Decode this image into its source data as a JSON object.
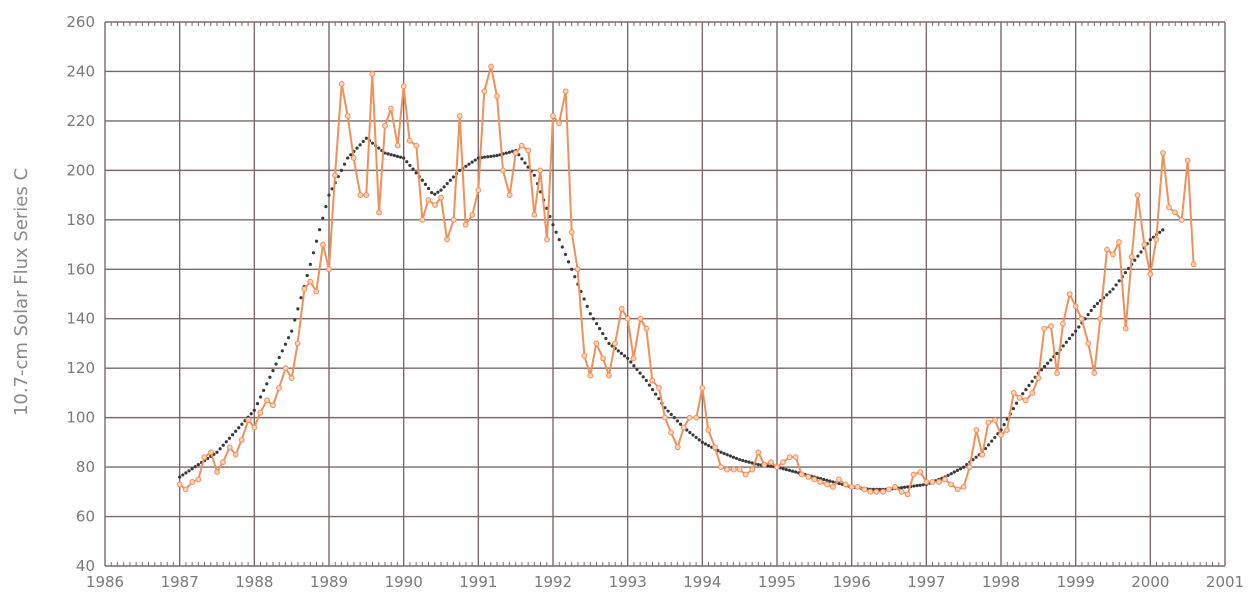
{
  "chart_data": {
    "type": "line",
    "title": "",
    "xlabel": "",
    "ylabel": "10.7-cm Solar Flux Series C",
    "xlim": [
      1986,
      2001
    ],
    "ylim": [
      40,
      260
    ],
    "xticks": [
      1986,
      1987,
      1988,
      1989,
      1990,
      1991,
      1992,
      1993,
      1994,
      1995,
      1996,
      1997,
      1998,
      1999,
      2000,
      2001
    ],
    "yticks": [
      40,
      60,
      80,
      100,
      120,
      140,
      160,
      180,
      200,
      220,
      240,
      260
    ],
    "grid": true,
    "colors": {
      "monthly": "#f0905a",
      "smoothed": "#3a3a3a",
      "grid": "#7a6a6a",
      "axis_text": "#7a7a7a"
    },
    "series": [
      {
        "style": "line-with-markers",
        "points": [
          [
            1987.0,
            73
          ],
          [
            1987.08,
            71
          ],
          [
            1987.17,
            74
          ],
          [
            1987.25,
            75
          ],
          [
            1987.33,
            84
          ],
          [
            1987.42,
            86
          ],
          [
            1987.5,
            78
          ],
          [
            1987.58,
            82
          ],
          [
            1987.67,
            88
          ],
          [
            1987.75,
            85
          ],
          [
            1987.83,
            91
          ],
          [
            1987.92,
            99
          ],
          [
            1988.0,
            96
          ],
          [
            1988.08,
            102
          ],
          [
            1988.17,
            107
          ],
          [
            1988.25,
            105
          ],
          [
            1988.33,
            112
          ],
          [
            1988.42,
            120
          ],
          [
            1988.5,
            116
          ],
          [
            1988.58,
            130
          ],
          [
            1988.67,
            152
          ],
          [
            1988.75,
            155
          ],
          [
            1988.83,
            151
          ],
          [
            1988.92,
            170
          ],
          [
            1989.0,
            160
          ],
          [
            1989.08,
            198
          ],
          [
            1989.17,
            235
          ],
          [
            1989.25,
            222
          ],
          [
            1989.33,
            205
          ],
          [
            1989.42,
            190
          ],
          [
            1989.5,
            190
          ],
          [
            1989.58,
            239
          ],
          [
            1989.67,
            183
          ],
          [
            1989.75,
            218
          ],
          [
            1989.83,
            225
          ],
          [
            1989.92,
            210
          ],
          [
            1990.0,
            234
          ],
          [
            1990.08,
            212
          ],
          [
            1990.17,
            210
          ],
          [
            1990.25,
            180
          ],
          [
            1990.33,
            188
          ],
          [
            1990.42,
            186
          ],
          [
            1990.5,
            189
          ],
          [
            1990.58,
            172
          ],
          [
            1990.67,
            180
          ],
          [
            1990.75,
            222
          ],
          [
            1990.83,
            178
          ],
          [
            1990.92,
            182
          ],
          [
            1991.0,
            192
          ],
          [
            1991.08,
            232
          ],
          [
            1991.17,
            242
          ],
          [
            1991.25,
            230
          ],
          [
            1991.33,
            200
          ],
          [
            1991.42,
            190
          ],
          [
            1991.5,
            207
          ],
          [
            1991.58,
            210
          ],
          [
            1991.67,
            208
          ],
          [
            1991.75,
            182
          ],
          [
            1991.83,
            200
          ],
          [
            1991.92,
            172
          ],
          [
            1992.0,
            222
          ],
          [
            1992.08,
            219
          ],
          [
            1992.17,
            232
          ],
          [
            1992.25,
            175
          ],
          [
            1992.33,
            160
          ],
          [
            1992.42,
            125
          ],
          [
            1992.5,
            117
          ],
          [
            1992.58,
            130
          ],
          [
            1992.67,
            124
          ],
          [
            1992.75,
            117
          ],
          [
            1992.83,
            130
          ],
          [
            1992.92,
            144
          ],
          [
            1993.0,
            140
          ],
          [
            1993.08,
            124
          ],
          [
            1993.17,
            140
          ],
          [
            1993.25,
            136
          ],
          [
            1993.33,
            115
          ],
          [
            1993.42,
            112
          ],
          [
            1993.5,
            100
          ],
          [
            1993.58,
            94
          ],
          [
            1993.67,
            88
          ],
          [
            1993.75,
            96
          ],
          [
            1993.83,
            100
          ],
          [
            1993.92,
            100
          ],
          [
            1994.0,
            112
          ],
          [
            1994.08,
            95
          ],
          [
            1994.17,
            88
          ],
          [
            1994.25,
            80
          ],
          [
            1994.33,
            79
          ],
          [
            1994.42,
            79
          ],
          [
            1994.5,
            79
          ],
          [
            1994.58,
            77
          ],
          [
            1994.67,
            79
          ],
          [
            1994.75,
            86
          ],
          [
            1994.83,
            81
          ],
          [
            1994.92,
            82
          ],
          [
            1995.0,
            80
          ],
          [
            1995.08,
            82
          ],
          [
            1995.17,
            84
          ],
          [
            1995.25,
            84
          ],
          [
            1995.33,
            77
          ],
          [
            1995.42,
            76
          ],
          [
            1995.5,
            75
          ],
          [
            1995.58,
            74
          ],
          [
            1995.67,
            73
          ],
          [
            1995.75,
            72
          ],
          [
            1995.83,
            75
          ],
          [
            1995.92,
            73
          ],
          [
            1996.0,
            72
          ],
          [
            1996.08,
            72
          ],
          [
            1996.17,
            71
          ],
          [
            1996.25,
            70
          ],
          [
            1996.33,
            70
          ],
          [
            1996.42,
            70
          ],
          [
            1996.5,
            71
          ],
          [
            1996.58,
            72
          ],
          [
            1996.67,
            70
          ],
          [
            1996.75,
            69
          ],
          [
            1996.83,
            77
          ],
          [
            1996.92,
            78
          ],
          [
            1997.0,
            74
          ],
          [
            1997.08,
            74
          ],
          [
            1997.17,
            74
          ],
          [
            1997.25,
            75
          ],
          [
            1997.33,
            73
          ],
          [
            1997.42,
            71
          ],
          [
            1997.5,
            72
          ],
          [
            1997.58,
            80
          ],
          [
            1997.67,
            95
          ],
          [
            1997.75,
            85
          ],
          [
            1997.83,
            98
          ],
          [
            1997.92,
            99
          ],
          [
            1998.0,
            93
          ],
          [
            1998.08,
            95
          ],
          [
            1998.17,
            110
          ],
          [
            1998.25,
            108
          ],
          [
            1998.33,
            107
          ],
          [
            1998.42,
            110
          ],
          [
            1998.5,
            116
          ],
          [
            1998.58,
            136
          ],
          [
            1998.67,
            137
          ],
          [
            1998.75,
            118
          ],
          [
            1998.83,
            138
          ],
          [
            1998.92,
            150
          ],
          [
            1999.0,
            145
          ],
          [
            1999.08,
            140
          ],
          [
            1999.17,
            130
          ],
          [
            1999.25,
            118
          ],
          [
            1999.33,
            140
          ],
          [
            1999.42,
            168
          ],
          [
            1999.5,
            166
          ],
          [
            1999.58,
            171
          ],
          [
            1999.67,
            136
          ],
          [
            1999.75,
            165
          ],
          [
            1999.83,
            190
          ],
          [
            1999.92,
            170
          ],
          [
            2000.0,
            158
          ],
          [
            2000.08,
            172
          ],
          [
            2000.17,
            207
          ],
          [
            2000.25,
            185
          ],
          [
            2000.33,
            183
          ],
          [
            2000.42,
            180
          ],
          [
            2000.5,
            204
          ],
          [
            2000.58,
            162
          ]
        ]
      },
      {
        "style": "dotted",
        "points": [
          [
            1987.0,
            76
          ],
          [
            1987.5,
            86
          ],
          [
            1988.0,
            103
          ],
          [
            1988.5,
            135
          ],
          [
            1988.75,
            162
          ],
          [
            1989.0,
            190
          ],
          [
            1989.25,
            205
          ],
          [
            1989.5,
            213
          ],
          [
            1989.75,
            207
          ],
          [
            1990.0,
            205
          ],
          [
            1990.25,
            196
          ],
          [
            1990.4,
            190
          ],
          [
            1990.5,
            192
          ],
          [
            1990.75,
            200
          ],
          [
            1991.0,
            205
          ],
          [
            1991.25,
            206
          ],
          [
            1991.5,
            208
          ],
          [
            1991.75,
            198
          ],
          [
            1992.0,
            178
          ],
          [
            1992.25,
            160
          ],
          [
            1992.5,
            142
          ],
          [
            1992.75,
            130
          ],
          [
            1993.0,
            124
          ],
          [
            1993.25,
            115
          ],
          [
            1993.5,
            104
          ],
          [
            1993.75,
            96
          ],
          [
            1994.0,
            90
          ],
          [
            1994.25,
            86
          ],
          [
            1994.5,
            83
          ],
          [
            1994.75,
            81
          ],
          [
            1995.0,
            80
          ],
          [
            1995.25,
            78
          ],
          [
            1995.5,
            76
          ],
          [
            1995.75,
            74
          ],
          [
            1996.0,
            72
          ],
          [
            1996.25,
            71
          ],
          [
            1996.5,
            71
          ],
          [
            1996.75,
            72
          ],
          [
            1997.0,
            73
          ],
          [
            1997.25,
            76
          ],
          [
            1997.5,
            80
          ],
          [
            1997.75,
            86
          ],
          [
            1998.0,
            95
          ],
          [
            1998.25,
            108
          ],
          [
            1998.5,
            118
          ],
          [
            1998.75,
            126
          ],
          [
            1999.0,
            135
          ],
          [
            1999.25,
            145
          ],
          [
            1999.5,
            152
          ],
          [
            1999.75,
            162
          ],
          [
            2000.0,
            172
          ],
          [
            2000.17,
            176
          ]
        ]
      }
    ]
  }
}
